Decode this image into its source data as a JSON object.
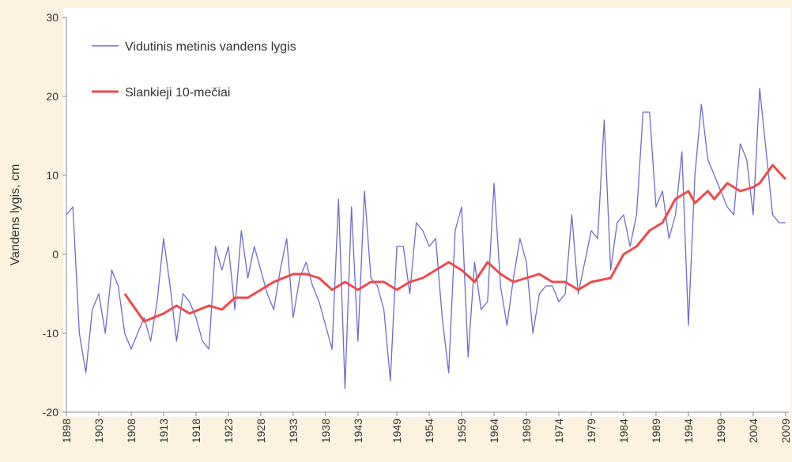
{
  "chart_data": {
    "type": "line",
    "ylabel": "Vandens lygis, cm",
    "xlim": [
      1898,
      2009.5
    ],
    "ylim": [
      -20,
      30
    ],
    "yticks": [
      -20,
      -10,
      0,
      10,
      20,
      30
    ],
    "xticks": [
      1898,
      1903,
      1908,
      1913,
      1918,
      1923,
      1928,
      1933,
      1938,
      1943,
      1949,
      1954,
      1959,
      1964,
      1969,
      1974,
      1979,
      1984,
      1989,
      1994,
      1999,
      2004,
      2009
    ],
    "legend": "upper left",
    "series": [
      {
        "name": "Vidutinis metinis vandens lygis",
        "color": "#6b6bcc",
        "x": [
          1898,
          1899,
          1900,
          1901,
          1902,
          1903,
          1904,
          1905,
          1906,
          1907,
          1908,
          1909,
          1910,
          1911,
          1912,
          1913,
          1914,
          1915,
          1916,
          1917,
          1918,
          1919,
          1920,
          1921,
          1922,
          1923,
          1924,
          1925,
          1926,
          1927,
          1928,
          1929,
          1930,
          1931,
          1932,
          1933,
          1934,
          1935,
          1936,
          1937,
          1938,
          1939,
          1940,
          1941,
          1942,
          1943,
          1944,
          1945,
          1946,
          1947,
          1948,
          1949,
          1950,
          1951,
          1952,
          1953,
          1954,
          1955,
          1956,
          1957,
          1958,
          1959,
          1960,
          1961,
          1962,
          1963,
          1964,
          1965,
          1966,
          1967,
          1968,
          1969,
          1970,
          1971,
          1972,
          1973,
          1974,
          1975,
          1976,
          1977,
          1978,
          1979,
          1980,
          1981,
          1982,
          1983,
          1984,
          1985,
          1986,
          1987,
          1988,
          1989,
          1990,
          1991,
          1992,
          1993,
          1994,
          1995,
          1996,
          1997,
          1998,
          1999,
          2000,
          2001,
          2002,
          2003,
          2004,
          2005,
          2006,
          2007,
          2008,
          2009
        ],
        "values": [
          5,
          6,
          -10,
          -15,
          -7,
          -5,
          -10,
          -2,
          -4,
          -10,
          -12,
          -10,
          -8,
          -11,
          -6,
          2,
          -4,
          -11,
          -5,
          -6,
          -8,
          -11,
          -12,
          1,
          -2,
          1,
          -7,
          3,
          -3,
          1,
          -2,
          -5,
          -7,
          -2,
          2,
          -8,
          -3,
          -1,
          -4,
          -6,
          -9,
          -12,
          7,
          -17,
          6,
          -11,
          8,
          -3,
          -4,
          -7,
          -16,
          1,
          1,
          -5,
          4,
          3,
          1,
          2,
          -8,
          -15,
          3,
          6,
          -13,
          -1,
          -7,
          -6,
          9,
          -4,
          -9,
          -3,
          2,
          -1,
          -10,
          -5,
          -4,
          -4,
          -6,
          -5,
          5,
          -5,
          -1,
          3,
          2,
          17,
          -2,
          4,
          5,
          1,
          5,
          18,
          18,
          6,
          8,
          2,
          5,
          13,
          -9,
          10,
          19,
          12,
          10,
          8,
          6,
          5,
          14,
          12,
          5,
          21,
          13,
          5,
          4,
          4
        ]
      },
      {
        "name": "Slankieji 10-mečiai",
        "color": "#f04848",
        "x": [
          1907,
          1910,
          1913,
          1915,
          1917,
          1920,
          1922,
          1924,
          1926,
          1928,
          1930,
          1933,
          1935,
          1937,
          1939,
          1941,
          1943,
          1945,
          1947,
          1949,
          1951,
          1953,
          1955,
          1957,
          1959,
          1961,
          1963,
          1965,
          1967,
          1969,
          1971,
          1973,
          1975,
          1977,
          1979,
          1982,
          1984,
          1986,
          1988,
          1990,
          1992,
          1994,
          1995,
          1997,
          1998,
          2000,
          2002,
          2004,
          2005,
          2007,
          2009
        ],
        "values": [
          -5,
          -8.5,
          -7.5,
          -6.5,
          -7.5,
          -6.5,
          -7,
          -5.5,
          -5.5,
          -4.5,
          -3.5,
          -2.5,
          -2.5,
          -3,
          -4.5,
          -3.5,
          -4.5,
          -3.5,
          -3.5,
          -4.5,
          -3.5,
          -3,
          -2,
          -1,
          -2,
          -3.5,
          -1,
          -2.5,
          -3.5,
          -3,
          -2.5,
          -3.5,
          -3.5,
          -4.5,
          -3.5,
          -3,
          0,
          1,
          3,
          4,
          7,
          8,
          6.5,
          8,
          7,
          9,
          8,
          8.5,
          9,
          11.3,
          9.5
        ]
      }
    ]
  }
}
